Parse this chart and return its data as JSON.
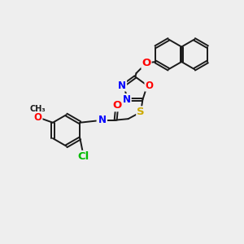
{
  "background_color": "#eeeeee",
  "bond_color": "#1a1a1a",
  "bond_width": 1.4,
  "atom_colors": {
    "N": "#0000ff",
    "O": "#ff0000",
    "S": "#ccaa00",
    "Cl": "#00bb00",
    "C": "#1a1a1a",
    "H": "#555555"
  },
  "font_size": 8.5,
  "fig_width": 3.0,
  "fig_height": 3.0,
  "dpi": 100
}
